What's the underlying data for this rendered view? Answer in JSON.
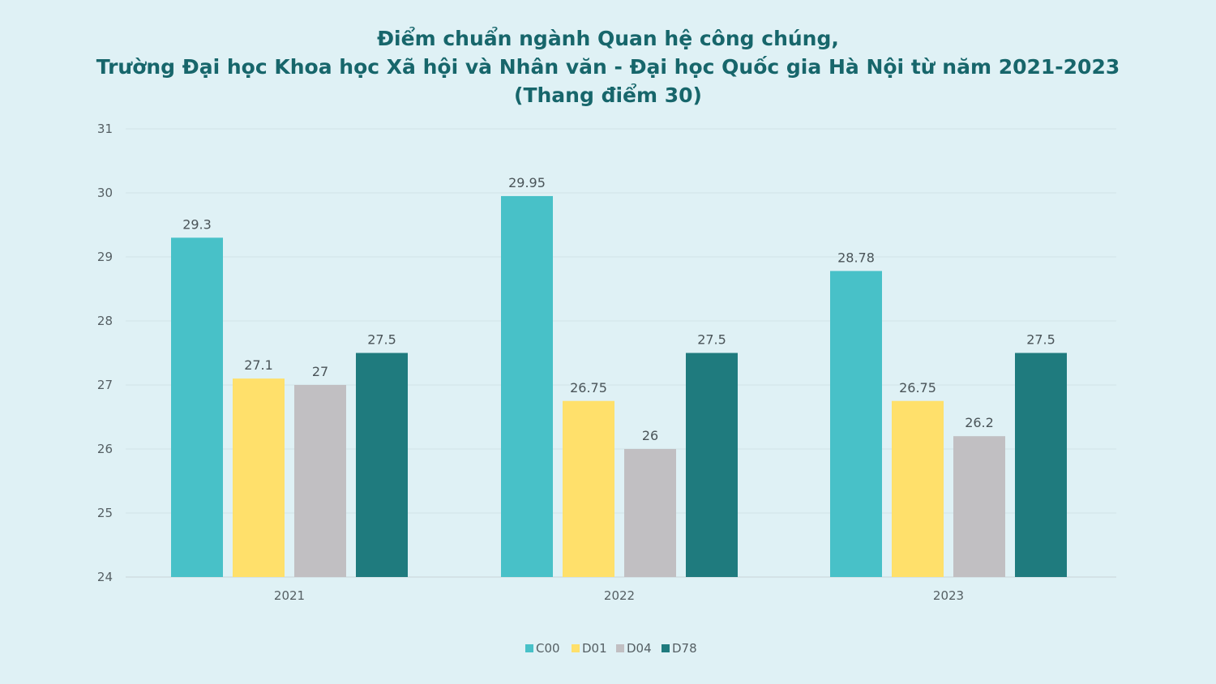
{
  "title": {
    "line1": "Điểm chuẩn ngành Quan hệ công chúng,",
    "line2": "Trường Đại học Khoa học Xã hội và Nhân văn - Đại học Quốc gia Hà Nội từ năm 2021-2023",
    "line3": "(Thang điểm 30)"
  },
  "colors": {
    "background": "#dff1f5",
    "title": "#17666b",
    "C00": "#48c1c8",
    "D01": "#ffe06b",
    "D04": "#c1bfc2",
    "D78": "#1f7b7e"
  },
  "chart_data": {
    "type": "bar",
    "categories": [
      "2021",
      "2022",
      "2023"
    ],
    "series": [
      {
        "name": "C00",
        "values": [
          29.3,
          29.95,
          28.78
        ]
      },
      {
        "name": "D01",
        "values": [
          27.1,
          26.75,
          26.75
        ]
      },
      {
        "name": "D04",
        "values": [
          27,
          26,
          26.2
        ]
      },
      {
        "name": "D78",
        "values": [
          27.5,
          27.5,
          27.5
        ]
      }
    ],
    "data_labels": [
      [
        "29.3",
        "29.95",
        "28.78"
      ],
      [
        "27.1",
        "26.75",
        "26.75"
      ],
      [
        "27",
        "26",
        "26.2"
      ],
      [
        "27.5",
        "27.5",
        "27.5"
      ]
    ],
    "ylim": [
      24,
      31
    ],
    "yticks": [
      "24",
      "25",
      "26",
      "27",
      "28",
      "29",
      "30",
      "31"
    ],
    "grid": true,
    "legend": "bottom"
  }
}
